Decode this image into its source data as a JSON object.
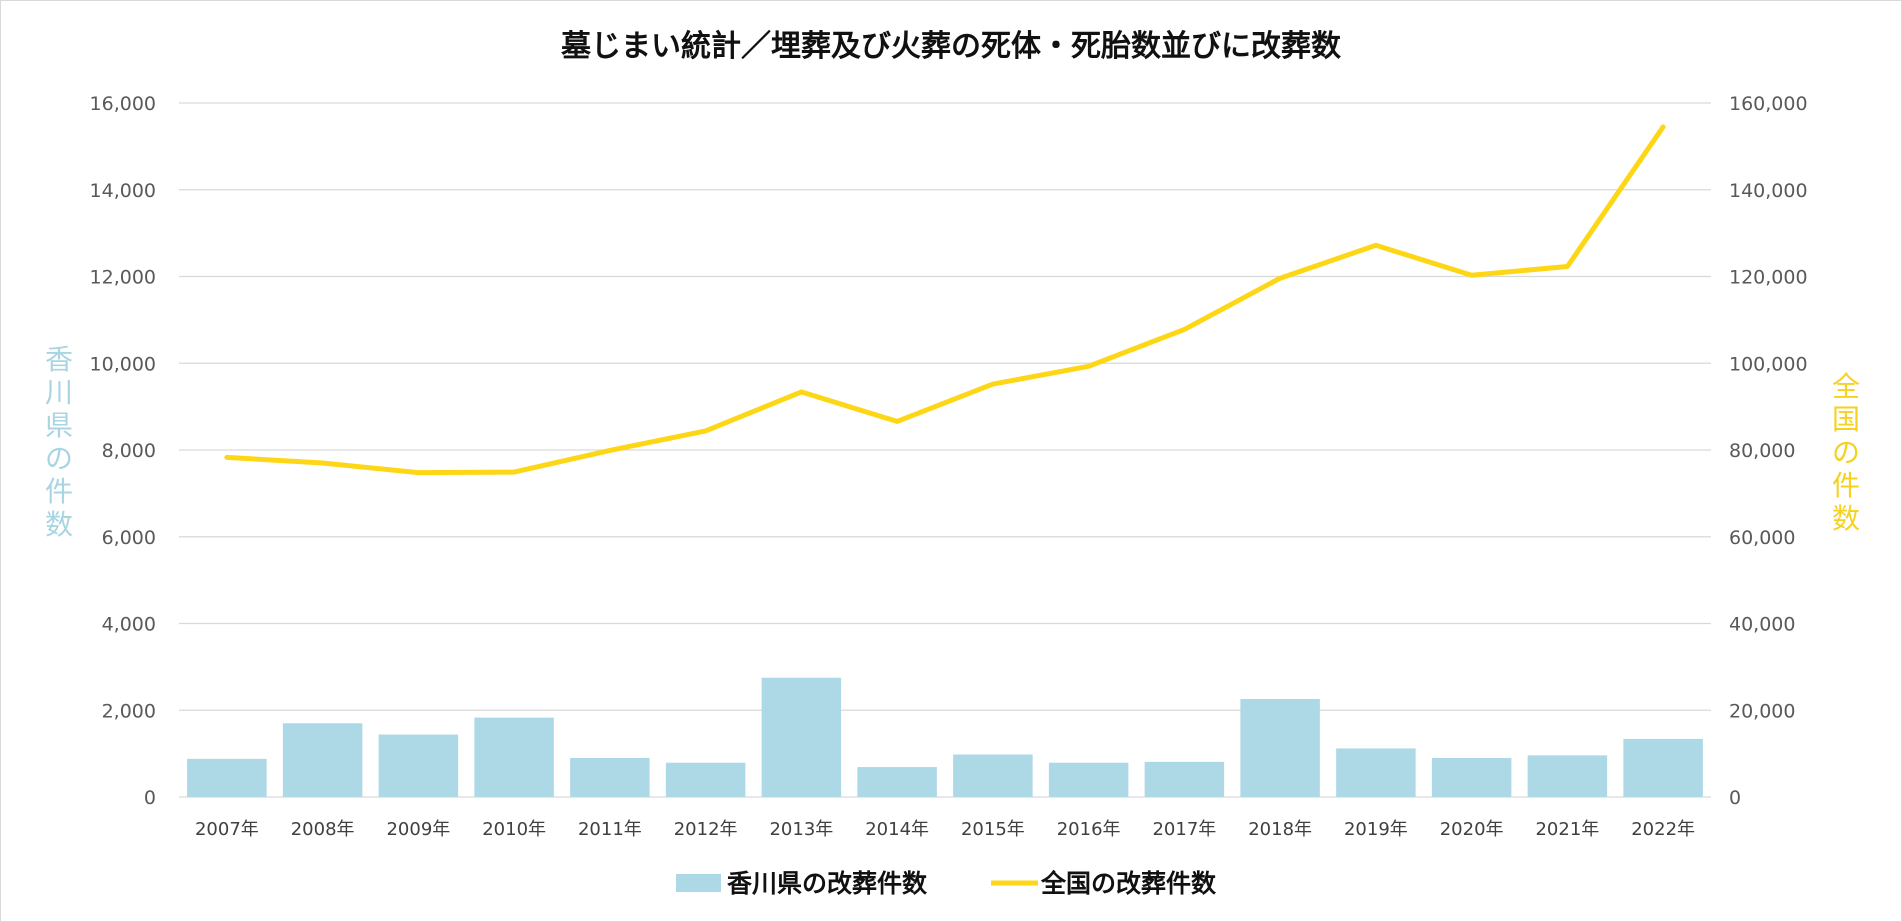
{
  "chart_data": {
    "type": "bar+line",
    "title": "墓じまい統計／埋葬及び火葬の死体・死胎数並びに改葬数",
    "categories": [
      "2007年",
      "2008年",
      "2009年",
      "2010年",
      "2011年",
      "2012年",
      "2013年",
      "2014年",
      "2015年",
      "2016年",
      "2017年",
      "2018年",
      "2019年",
      "2020年",
      "2021年",
      "2022年"
    ],
    "series": [
      {
        "name": "香川県の改葬件数",
        "type": "bar",
        "axis": "left",
        "color": "#add8e6",
        "values": [
          880,
          1700,
          1440,
          1830,
          900,
          790,
          2750,
          690,
          980,
          790,
          810,
          2260,
          1120,
          900,
          960,
          1340
        ]
      },
      {
        "name": "全国の改葬件数",
        "type": "line",
        "axis": "right",
        "color": "#fdd715",
        "values": [
          78300,
          77000,
          74800,
          74900,
          79900,
          84400,
          93400,
          86600,
          95200,
          99300,
          107800,
          119600,
          127200,
          120300,
          122300,
          154500
        ]
      }
    ],
    "y_left": {
      "label": "香川県の件数",
      "range": [
        0,
        16000
      ],
      "ticks": [
        "0",
        "2,000",
        "4,000",
        "6,000",
        "8,000",
        "10,000",
        "12,000",
        "14,000",
        "16,000"
      ]
    },
    "y_right": {
      "label": "全国の件数",
      "range": [
        0,
        160000
      ],
      "ticks": [
        "0",
        "20,000",
        "40,000",
        "60,000",
        "80,000",
        "100,000",
        "120,000",
        "140,000",
        "160,000"
      ]
    },
    "grid": true,
    "legend": "bottom-center"
  }
}
